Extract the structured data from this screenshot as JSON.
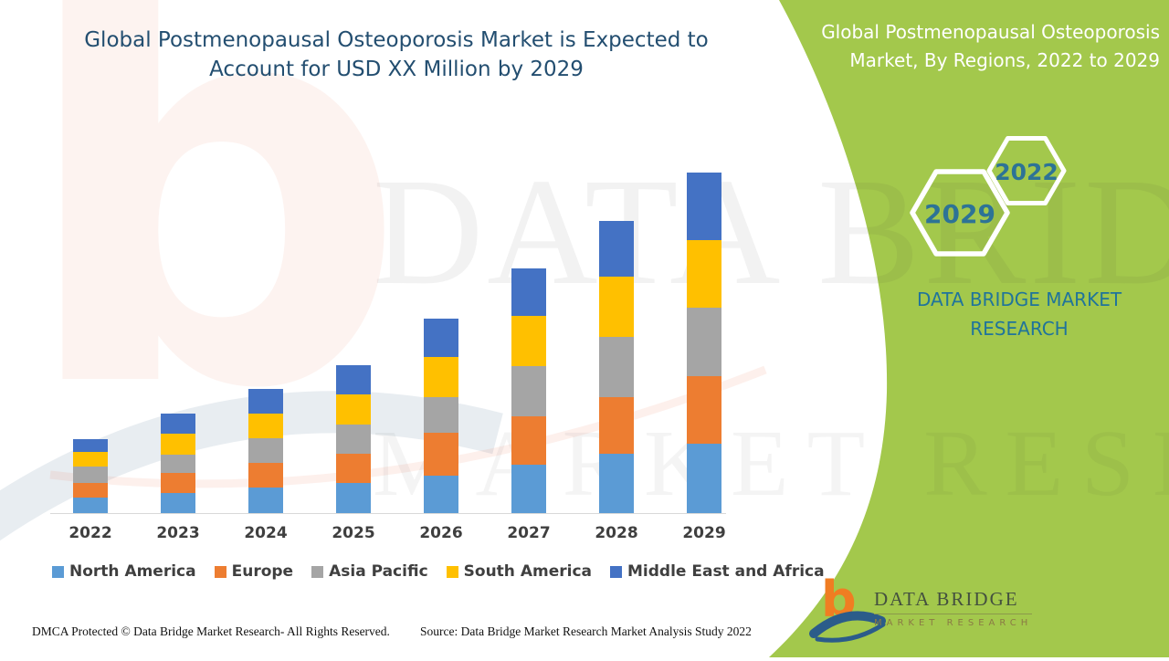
{
  "header": {
    "title": "Global Postmenopausal Osteoporosis Market is Expected to Account for USD XX Million by 2029"
  },
  "side_panel": {
    "title": "Global Postmenopausal Osteoporosis Market, By Regions, 2022 to 2029",
    "hexagon_back_label": "2022",
    "hexagon_front_label": "2029",
    "brand_text": "DATA BRIDGE MARKET RESEARCH",
    "panel_color": "#A3C84C"
  },
  "chart_data": {
    "type": "bar",
    "stacked": true,
    "title": "Global Postmenopausal Osteoporosis Market, By Regions, 2022 to 2029",
    "xlabel": "",
    "ylabel": "",
    "units": "USD Million (actual values undisclosed, shown as 'XX'; series values are relative estimates from bar heights)",
    "grid": false,
    "legend_position": "bottom",
    "categories": [
      "2022",
      "2023",
      "2024",
      "2025",
      "2026",
      "2027",
      "2028",
      "2029"
    ],
    "series": [
      {
        "name": "North America",
        "color": "#5B9BD5",
        "values": [
          17,
          22,
          28,
          33,
          41,
          53,
          65,
          76
        ]
      },
      {
        "name": "Europe",
        "color": "#ED7D31",
        "values": [
          16,
          22,
          27,
          32,
          47,
          53,
          62,
          74
        ]
      },
      {
        "name": "Asia Pacific",
        "color": "#A5A5A5",
        "values": [
          18,
          20,
          27,
          32,
          39,
          55,
          66,
          75
        ]
      },
      {
        "name": "South America",
        "color": "#FFC000",
        "values": [
          16,
          23,
          27,
          33,
          44,
          55,
          66,
          74
        ]
      },
      {
        "name": "Middle East and Africa",
        "color": "#4472C4",
        "values": [
          14,
          22,
          27,
          32,
          42,
          52,
          61,
          74
        ]
      }
    ],
    "totals": [
      81,
      109,
      136,
      162,
      213,
      268,
      320,
      373
    ]
  },
  "watermark": {
    "line1": "DATA BRIDGE",
    "line2": "MARKET RESEARCH",
    "logo_glyph": "b"
  },
  "footer": {
    "dmca": "DMCA Protected © Data Bridge Market Research- All Rights Reserved.",
    "source": "Source: Data Bridge Market Research Market Analysis Study 2022"
  },
  "logo": {
    "glyph": "b",
    "name": "DATA BRIDGE",
    "subname": "MARKET RESEARCH"
  },
  "colors": {
    "title_text": "#234E70",
    "panel_green": "#A3C84C",
    "brand_teal": "#20749B",
    "axis_line": "#D9D9D9",
    "axis_label": "#3F3F3F"
  }
}
